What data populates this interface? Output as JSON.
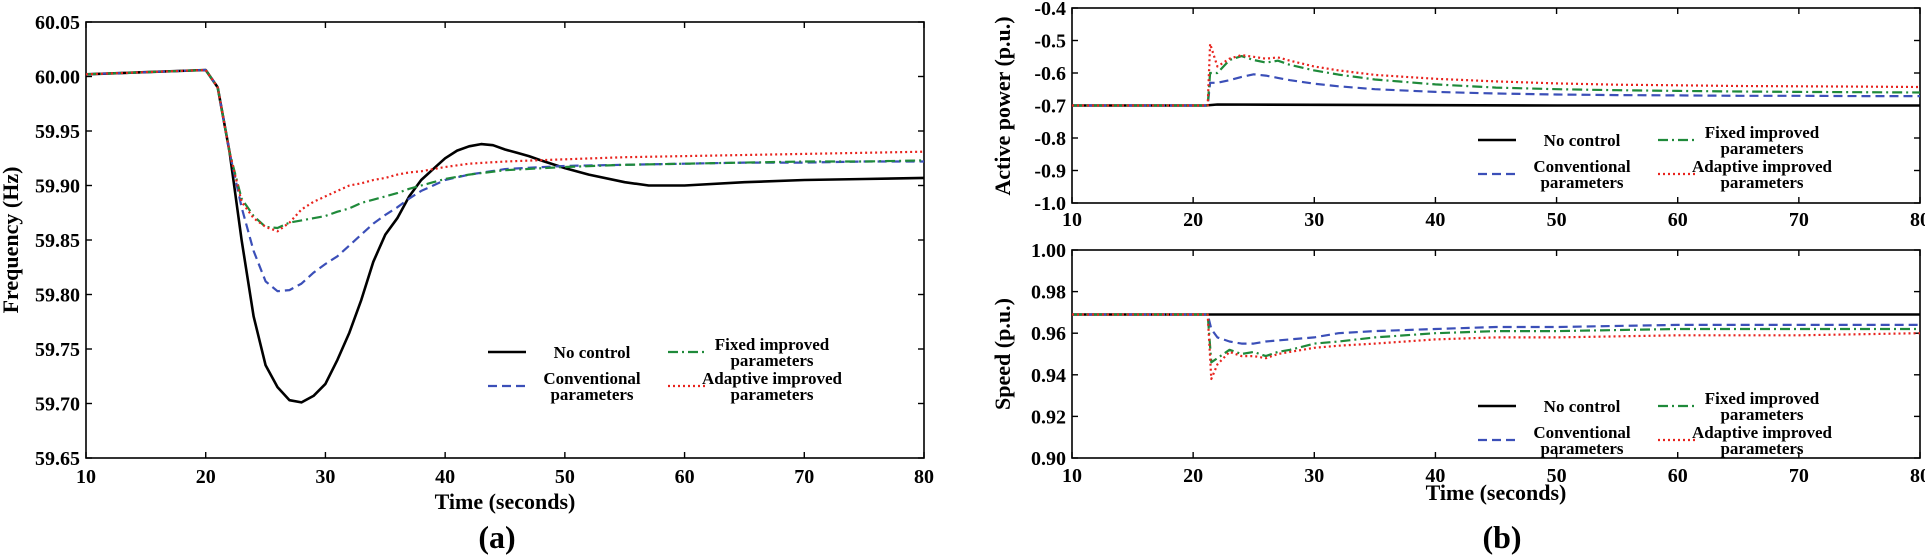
{
  "legend_labels": {
    "no_control": "No control",
    "conventional": [
      "Conventional",
      "parameters"
    ],
    "fixed": [
      "Fixed improved",
      "parameters"
    ],
    "adaptive": [
      "Adaptive improved",
      "parameters"
    ]
  },
  "colors": {
    "no_control": "#000000",
    "conventional": "#3b4fb8",
    "fixed": "#1f8a3a",
    "adaptive": "#e8231d"
  },
  "panel_labels": {
    "a": "(a)",
    "b": "(b)"
  },
  "chart_data": [
    {
      "id": "freq",
      "type": "line",
      "title": "",
      "xlabel": "Time (seconds)",
      "ylabel": "Frequency (Hz)",
      "xlim": [
        10,
        80
      ],
      "ylim": [
        59.65,
        60.05
      ],
      "xticks": [
        10,
        20,
        30,
        40,
        50,
        60,
        70,
        80
      ],
      "yticks": [
        59.65,
        59.7,
        59.75,
        59.8,
        59.85,
        59.9,
        59.95,
        60.0,
        60.05
      ],
      "ytick_labels": [
        "59.65",
        "59.70",
        "59.75",
        "59.80",
        "59.85",
        "59.90",
        "59.95",
        "60.00",
        "60.05"
      ],
      "series": [
        {
          "name": "No control",
          "key": "no_control",
          "x": [
            10,
            20,
            21,
            22,
            23,
            24,
            25,
            26,
            27,
            28,
            29,
            30,
            31,
            32,
            33,
            34,
            35,
            36,
            37,
            38,
            39,
            40,
            41,
            42,
            43,
            44,
            45,
            46,
            47,
            48,
            50,
            52,
            55,
            57,
            60,
            65,
            70,
            75,
            80
          ],
          "y": [
            60.002,
            60.006,
            59.99,
            59.93,
            59.85,
            59.78,
            59.735,
            59.715,
            59.703,
            59.701,
            59.707,
            59.718,
            59.74,
            59.765,
            59.795,
            59.83,
            59.855,
            59.87,
            59.89,
            59.905,
            59.915,
            59.925,
            59.932,
            59.936,
            59.938,
            59.937,
            59.933,
            59.93,
            59.927,
            59.923,
            59.916,
            59.91,
            59.903,
            59.9,
            59.9,
            59.903,
            59.905,
            59.906,
            59.907
          ]
        },
        {
          "name": "Conventional parameters",
          "key": "conventional",
          "x": [
            10,
            20,
            21,
            22,
            23,
            24,
            25,
            26,
            27,
            28,
            29,
            30,
            31,
            32,
            33,
            34,
            35,
            36,
            37,
            38,
            39,
            40,
            42,
            45,
            50,
            55,
            60,
            65,
            70,
            75,
            80
          ],
          "y": [
            60.002,
            60.006,
            59.99,
            59.93,
            59.88,
            59.84,
            59.812,
            59.803,
            59.804,
            59.81,
            59.82,
            59.828,
            59.835,
            59.845,
            59.855,
            59.865,
            59.873,
            59.88,
            59.888,
            59.895,
            59.9,
            59.905,
            59.91,
            59.915,
            59.918,
            59.919,
            59.92,
            59.921,
            59.921,
            59.922,
            59.922
          ]
        },
        {
          "name": "Fixed improved parameters",
          "key": "fixed",
          "x": [
            10,
            20,
            21,
            22,
            23,
            24,
            25,
            26,
            27,
            28,
            29,
            30,
            31,
            32,
            33,
            34,
            35,
            36,
            37,
            38,
            39,
            40,
            42,
            45,
            50,
            55,
            60,
            65,
            70,
            75,
            80
          ],
          "y": [
            60.002,
            60.006,
            59.99,
            59.93,
            59.888,
            59.872,
            59.862,
            59.861,
            59.866,
            59.868,
            59.87,
            59.872,
            59.876,
            59.879,
            59.884,
            59.887,
            59.89,
            59.893,
            59.897,
            59.9,
            59.903,
            59.906,
            59.91,
            59.914,
            59.917,
            59.919,
            59.92,
            59.921,
            59.922,
            59.922,
            59.923
          ]
        },
        {
          "name": "Adaptive improved parameters",
          "key": "adaptive",
          "x": [
            10,
            20,
            21,
            22,
            23,
            24,
            25,
            26,
            27,
            28,
            29,
            30,
            31,
            32,
            33,
            34,
            35,
            36,
            37,
            38,
            39,
            40,
            42,
            45,
            50,
            55,
            60,
            65,
            70,
            75,
            80
          ],
          "y": [
            60.002,
            60.006,
            59.99,
            59.93,
            59.885,
            59.87,
            59.862,
            59.858,
            59.866,
            59.878,
            59.885,
            59.89,
            59.895,
            59.9,
            59.902,
            59.905,
            59.907,
            59.91,
            59.912,
            59.913,
            59.915,
            59.917,
            59.92,
            59.922,
            59.924,
            59.926,
            59.927,
            59.928,
            59.929,
            59.93,
            59.931
          ]
        }
      ]
    },
    {
      "id": "power",
      "type": "line",
      "title": "",
      "xlabel": "",
      "ylabel": "Active power (p.u.)",
      "xlim": [
        10,
        80
      ],
      "ylim": [
        -1.0,
        -0.4
      ],
      "xticks": [
        10,
        20,
        30,
        40,
        50,
        60,
        70,
        80
      ],
      "yticks": [
        -1.0,
        -0.9,
        -0.8,
        -0.7,
        -0.6,
        -0.5,
        -0.4
      ],
      "ytick_labels": [
        "-1.0",
        "-0.9",
        "-0.8",
        "-0.7",
        "-0.6",
        "-0.5",
        "-0.4"
      ],
      "series": [
        {
          "name": "No control",
          "key": "no_control",
          "x": [
            10,
            21,
            22,
            30,
            40,
            50,
            60,
            70,
            80
          ],
          "y": [
            -0.7,
            -0.7,
            -0.697,
            -0.698,
            -0.699,
            -0.7,
            -0.7,
            -0.7,
            -0.7
          ]
        },
        {
          "name": "Conventional parameters",
          "key": "conventional",
          "x": [
            10,
            21.2,
            21.4,
            22,
            23,
            24,
            25,
            26,
            27,
            28,
            30,
            32,
            35,
            40,
            45,
            50,
            55,
            60,
            65,
            70,
            75,
            80
          ],
          "y": [
            -0.7,
            -0.7,
            -0.63,
            -0.63,
            -0.622,
            -0.612,
            -0.604,
            -0.608,
            -0.615,
            -0.622,
            -0.633,
            -0.641,
            -0.65,
            -0.658,
            -0.663,
            -0.666,
            -0.668,
            -0.669,
            -0.67,
            -0.67,
            -0.671,
            -0.671
          ]
        },
        {
          "name": "Fixed improved parameters",
          "key": "fixed",
          "x": [
            10,
            21.2,
            21.4,
            22,
            23,
            24,
            25,
            26,
            27,
            28,
            30,
            32,
            35,
            40,
            45,
            50,
            55,
            60,
            65,
            70,
            75,
            80
          ],
          "y": [
            -0.7,
            -0.7,
            -0.6,
            -0.6,
            -0.56,
            -0.548,
            -0.56,
            -0.568,
            -0.562,
            -0.575,
            -0.592,
            -0.605,
            -0.62,
            -0.635,
            -0.645,
            -0.65,
            -0.653,
            -0.655,
            -0.657,
            -0.658,
            -0.659,
            -0.66
          ]
        },
        {
          "name": "Adaptive improved parameters",
          "key": "adaptive",
          "x": [
            10,
            21.2,
            21.4,
            22,
            23,
            24,
            25,
            26,
            27,
            28,
            30,
            32,
            35,
            40,
            45,
            50,
            55,
            60,
            65,
            70,
            75,
            80
          ],
          "y": [
            -0.7,
            -0.7,
            -0.51,
            -0.58,
            -0.556,
            -0.545,
            -0.55,
            -0.556,
            -0.552,
            -0.562,
            -0.58,
            -0.592,
            -0.606,
            -0.618,
            -0.626,
            -0.632,
            -0.636,
            -0.638,
            -0.64,
            -0.641,
            -0.642,
            -0.643
          ]
        }
      ]
    },
    {
      "id": "speed",
      "type": "line",
      "title": "",
      "xlabel": "Time (seconds)",
      "ylabel": "Speed (p.u.)",
      "xlim": [
        10,
        80
      ],
      "ylim": [
        0.9,
        1.0
      ],
      "xticks": [
        10,
        20,
        30,
        40,
        50,
        60,
        70,
        80
      ],
      "yticks": [
        0.9,
        0.92,
        0.94,
        0.96,
        0.98,
        1.0
      ],
      "ytick_labels": [
        "0.90",
        "0.92",
        "0.94",
        "0.96",
        "0.98",
        "1.00"
      ],
      "series": [
        {
          "name": "No control",
          "key": "no_control",
          "x": [
            10,
            21,
            22,
            30,
            40,
            50,
            60,
            70,
            80
          ],
          "y": [
            0.969,
            0.969,
            0.969,
            0.969,
            0.969,
            0.969,
            0.969,
            0.969,
            0.969
          ]
        },
        {
          "name": "Conventional parameters",
          "key": "conventional",
          "x": [
            10,
            21.2,
            21.5,
            22,
            23,
            24,
            25,
            26,
            28,
            30,
            32,
            35,
            40,
            45,
            50,
            60,
            70,
            80
          ],
          "y": [
            0.969,
            0.969,
            0.962,
            0.958,
            0.956,
            0.955,
            0.955,
            0.956,
            0.957,
            0.958,
            0.96,
            0.961,
            0.962,
            0.963,
            0.963,
            0.964,
            0.964,
            0.964
          ]
        },
        {
          "name": "Fixed improved parameters",
          "key": "fixed",
          "x": [
            10,
            21.2,
            21.5,
            22,
            23,
            24,
            25,
            26,
            27,
            28,
            30,
            32,
            35,
            40,
            45,
            50,
            60,
            70,
            80
          ],
          "y": [
            0.969,
            0.969,
            0.946,
            0.948,
            0.952,
            0.95,
            0.951,
            0.949,
            0.951,
            0.952,
            0.955,
            0.956,
            0.958,
            0.96,
            0.961,
            0.961,
            0.962,
            0.962,
            0.962
          ]
        },
        {
          "name": "Adaptive improved parameters",
          "key": "adaptive",
          "x": [
            10,
            21.2,
            21.5,
            22,
            23,
            24,
            25,
            26,
            27,
            28,
            30,
            32,
            35,
            40,
            45,
            50,
            60,
            70,
            80
          ],
          "y": [
            0.969,
            0.969,
            0.938,
            0.945,
            0.951,
            0.949,
            0.949,
            0.948,
            0.95,
            0.951,
            0.953,
            0.954,
            0.955,
            0.957,
            0.958,
            0.958,
            0.959,
            0.959,
            0.96
          ]
        }
      ]
    }
  ]
}
